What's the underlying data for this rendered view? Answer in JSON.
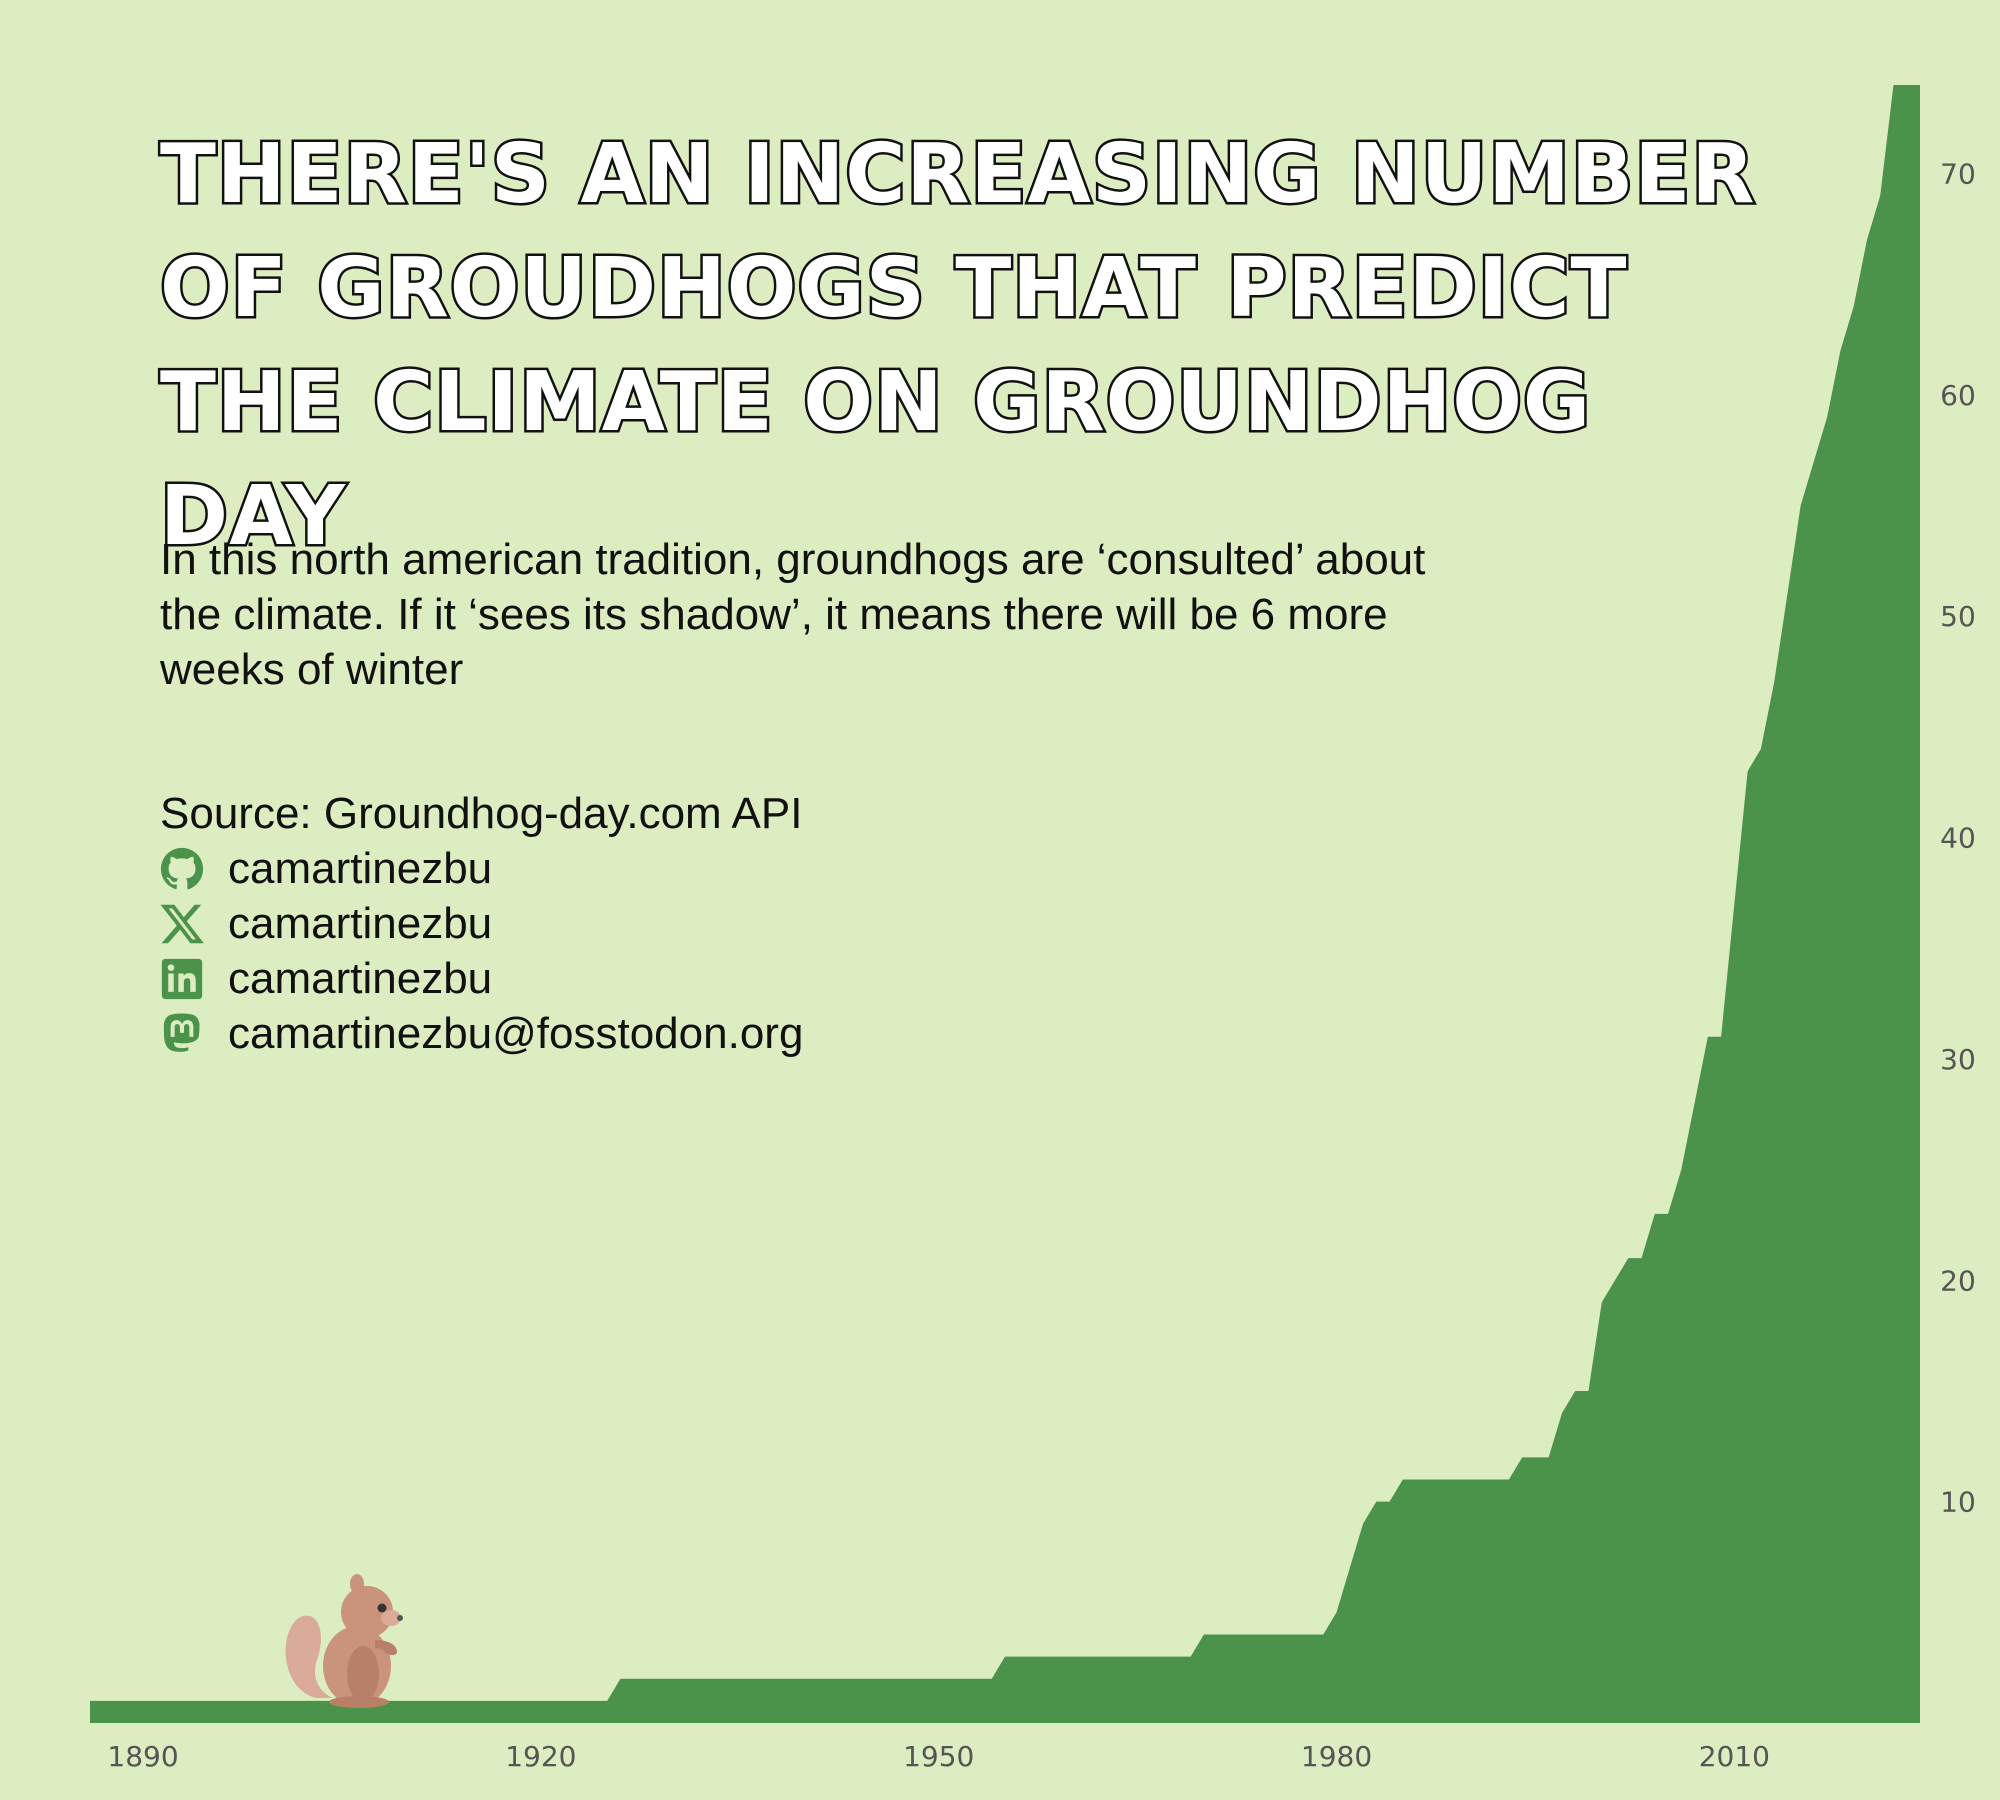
{
  "title": "There's an increasing number of groudhogs that predict the climate on Groundhog Day",
  "subtitle": "In this north american tradition, groundhogs are ‘consulted’ about the climate. If it ‘sees its shadow’, it means there will be 6 more weeks of winter",
  "caption": {
    "source": "Source: Groundhog-day.com API",
    "social": [
      {
        "icon": "github-icon",
        "handle": "camartinezbu"
      },
      {
        "icon": "x-icon",
        "handle": "camartinezbu"
      },
      {
        "icon": "linkedin-icon",
        "handle": "camartinezbu"
      },
      {
        "icon": "mastodon-icon",
        "handle": "camartinezbu@fosstodon.org"
      }
    ]
  },
  "colors": {
    "background": "#dbedc1",
    "area": "#4b924a",
    "icons": "#4b924a",
    "text": "#111111",
    "tick_text": "#555555"
  },
  "decoration": {
    "icon": "squirrel-icon"
  },
  "chart_data": {
    "type": "area",
    "title": "",
    "xlabel": "",
    "ylabel": "",
    "x_ticks": [
      1890,
      1920,
      1950,
      1980,
      2010
    ],
    "y_ticks": [
      10,
      20,
      30,
      40,
      50,
      60,
      70
    ],
    "xlim": [
      1886,
      2024
    ],
    "ylim": [
      0,
      74
    ],
    "y_axis_position": "right",
    "grid": false,
    "legend": "none",
    "x": [
      1886,
      1925,
      1926,
      1954,
      1955,
      1969,
      1970,
      1979,
      1980,
      1981,
      1982,
      1983,
      1984,
      1985,
      1993,
      1994,
      1996,
      1997,
      1998,
      1999,
      2000,
      2001,
      2002,
      2003,
      2004,
      2005,
      2006,
      2007,
      2008,
      2009,
      2010,
      2011,
      2012,
      2013,
      2014,
      2015,
      2016,
      2017,
      2018,
      2019,
      2020,
      2021,
      2022,
      2023
    ],
    "values": [
      1,
      1,
      2,
      2,
      3,
      3,
      4,
      4,
      5,
      7,
      9,
      10,
      10,
      11,
      11,
      12,
      12,
      14,
      15,
      15,
      19,
      20,
      21,
      21,
      23,
      23,
      25,
      28,
      31,
      31,
      37,
      43,
      44,
      47,
      51,
      55,
      57,
      59,
      62,
      64,
      67,
      69,
      74,
      74
    ]
  }
}
